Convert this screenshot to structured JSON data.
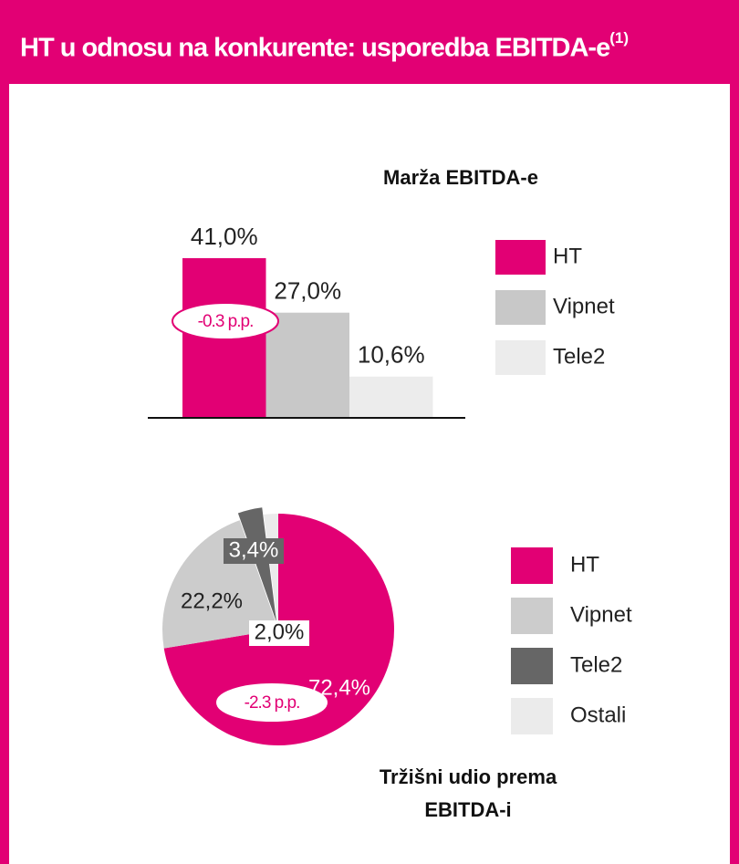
{
  "header": {
    "title": "HT u odnosu na konkurente: usporedba EBITDA-e",
    "superscript": "(1)"
  },
  "chart_data": [
    {
      "type": "bar",
      "title": "Marža EBITDA-e",
      "categories": [
        "HT",
        "Vipnet",
        "Tele2"
      ],
      "values": [
        41.0,
        27.0,
        10.6
      ],
      "value_labels": [
        "41,0%",
        "27,0%",
        "10,6%"
      ],
      "colors": [
        "#e20074",
        "#c8c8c8",
        "#ececec"
      ],
      "annotation": "-0.3 p.p."
    },
    {
      "type": "pie",
      "title": "Tržišni udio prema EBITDA-i",
      "categories": [
        "HT",
        "Vipnet",
        "Tele2",
        "Ostali"
      ],
      "values": [
        72.4,
        22.2,
        3.4,
        2.0
      ],
      "value_labels": [
        "72,4%",
        "22,2%",
        "3,4%",
        "2,0%"
      ],
      "colors": [
        "#e20074",
        "#cccccc",
        "#666666",
        "#ebebeb"
      ],
      "annotation": "-2.3 p.p."
    }
  ]
}
